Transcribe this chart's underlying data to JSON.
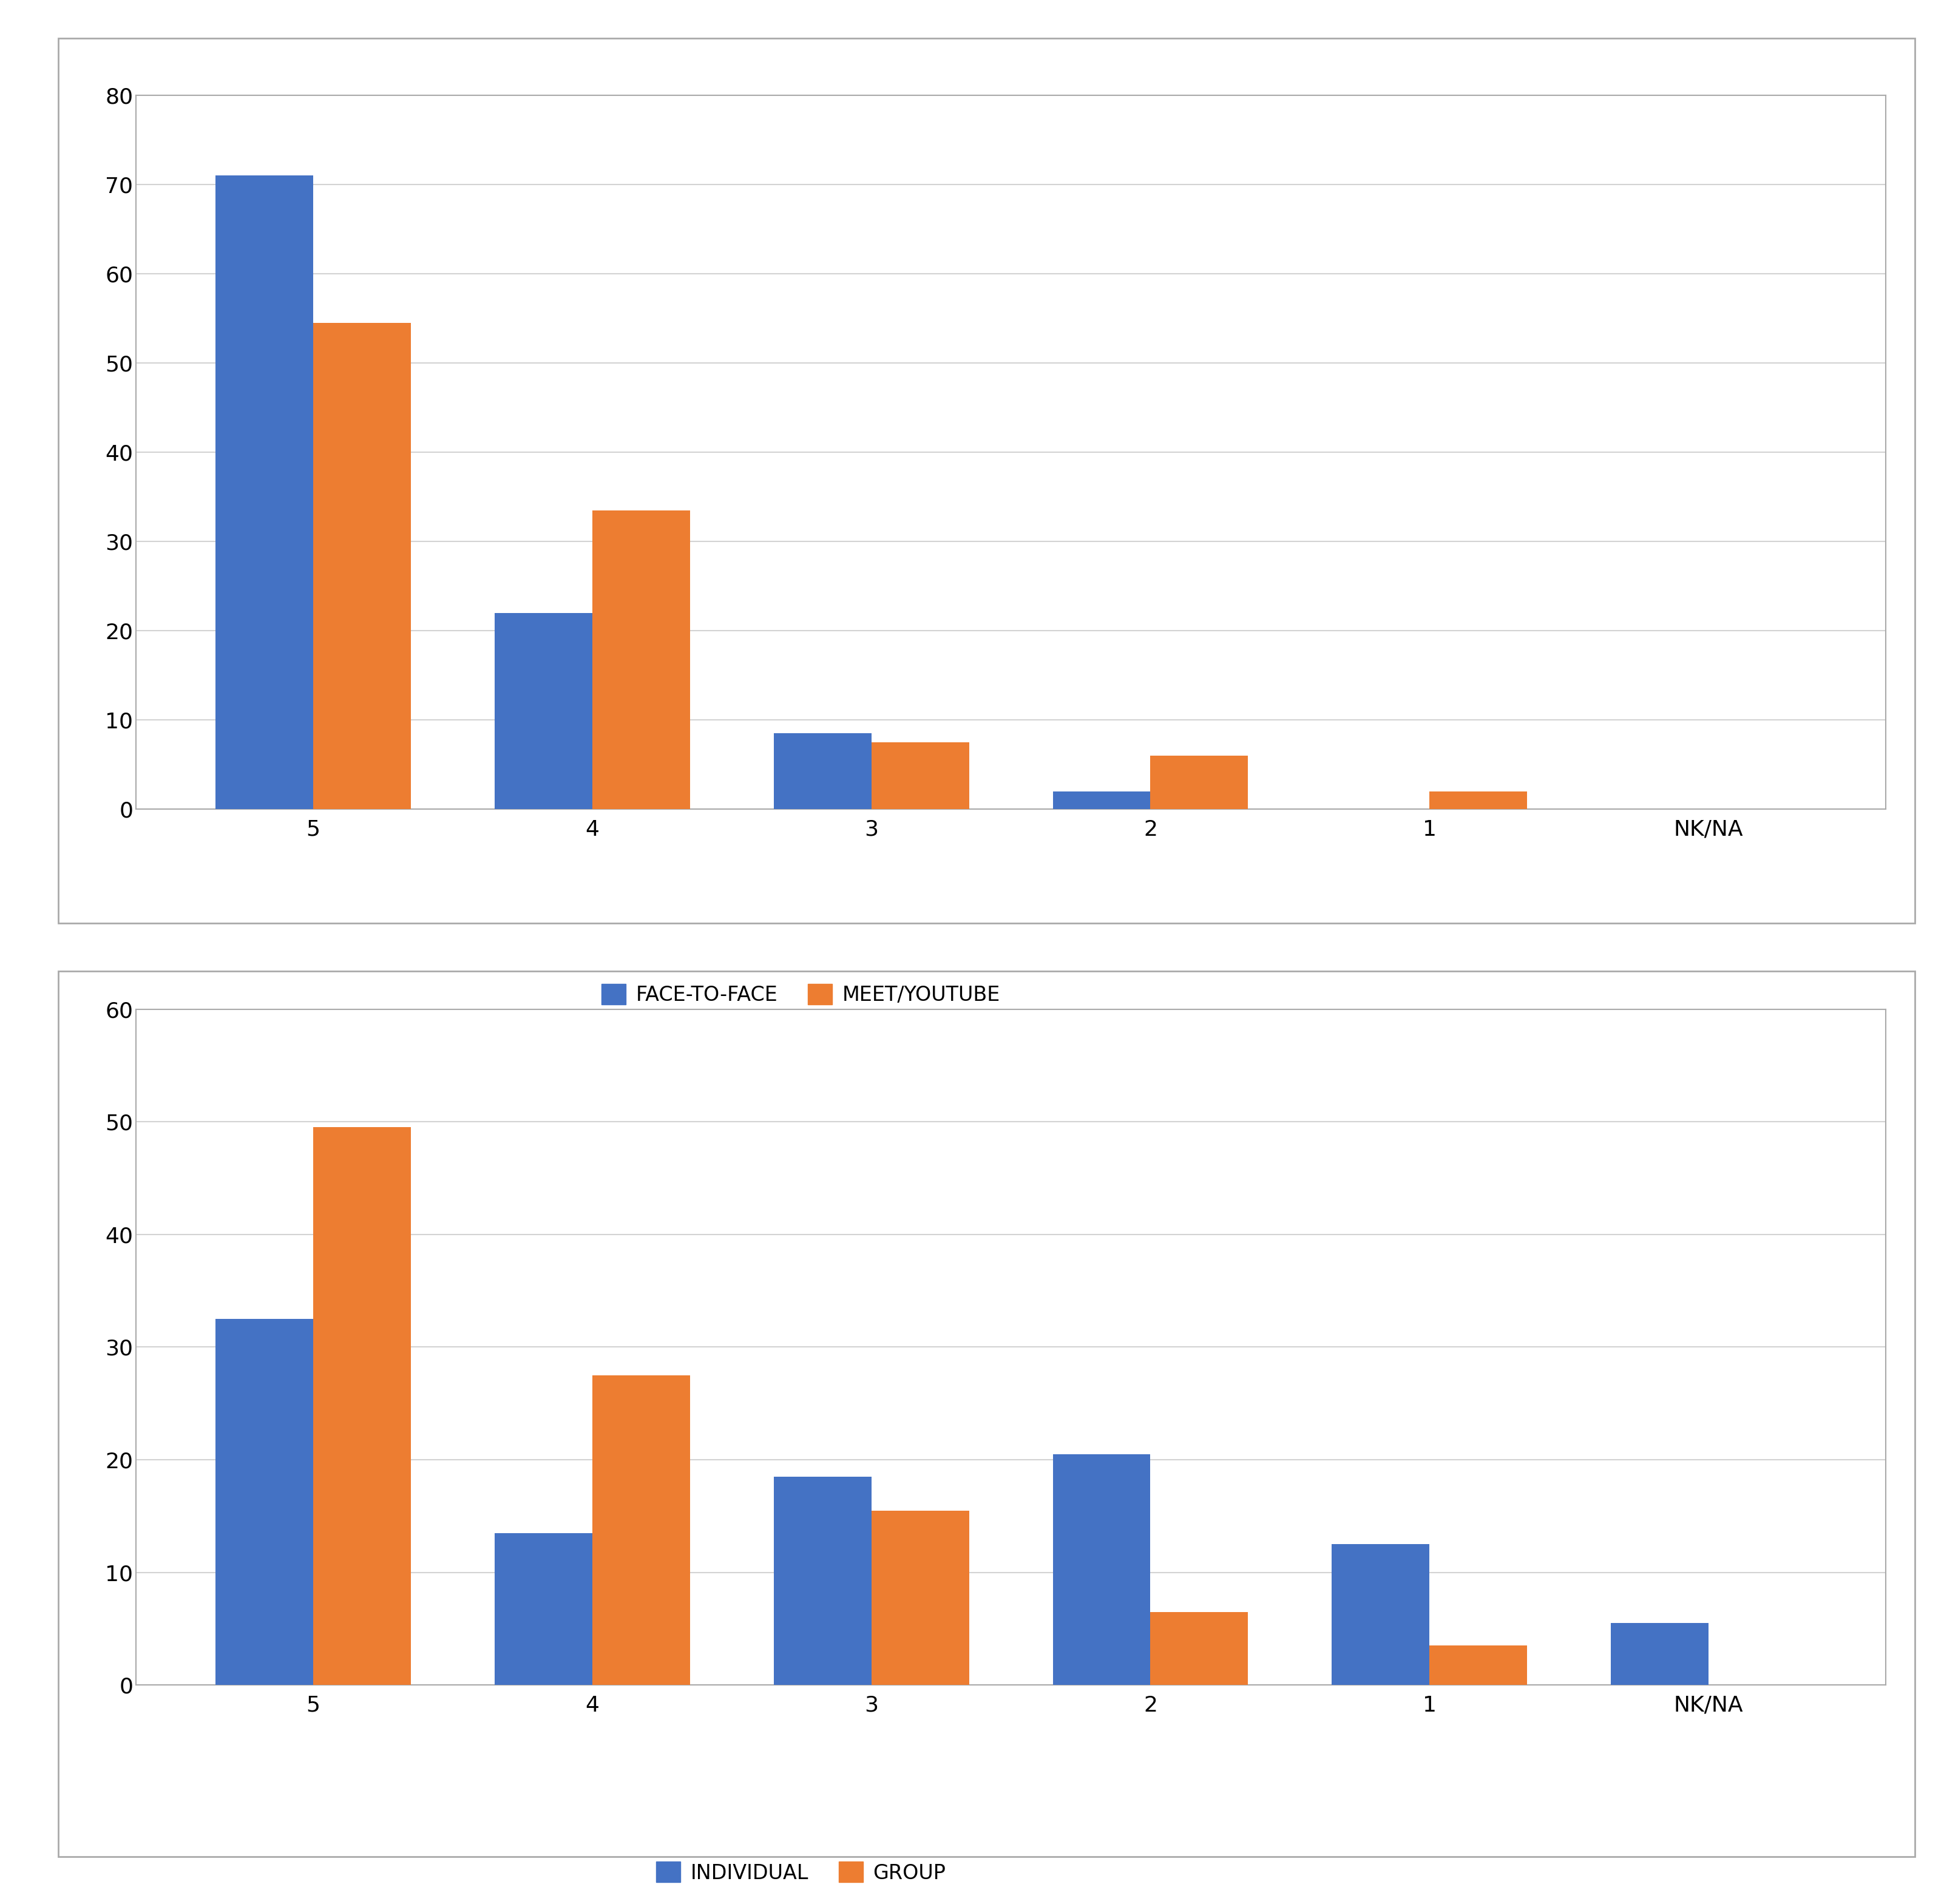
{
  "chart1": {
    "categories": [
      "5",
      "4",
      "3",
      "2",
      "1",
      "NK/NA"
    ],
    "face_to_face": [
      71,
      22,
      8.5,
      2,
      0,
      0
    ],
    "meet_youtube": [
      54.5,
      33.5,
      7.5,
      6,
      2,
      0
    ],
    "ylim": [
      0,
      80
    ],
    "yticks": [
      0,
      10,
      20,
      30,
      40,
      50,
      60,
      70,
      80
    ],
    "legend1": "FACE-TO-FACE",
    "legend2": "MEET/YOUTUBE",
    "color1": "#4472C4",
    "color2": "#ED7D31"
  },
  "chart2": {
    "categories": [
      "5",
      "4",
      "3",
      "2",
      "1",
      "NK/NA"
    ],
    "individual": [
      32.5,
      13.5,
      18.5,
      20.5,
      12.5,
      5.5
    ],
    "group": [
      49.5,
      27.5,
      15.5,
      6.5,
      3.5,
      0
    ],
    "ylim": [
      0,
      60
    ],
    "yticks": [
      0,
      10,
      20,
      30,
      40,
      50,
      60
    ],
    "legend1": "INDIVIDUAL",
    "legend2": "GROUP",
    "color1": "#4472C4",
    "color2": "#ED7D31"
  },
  "outer_bg": "#ffffff",
  "plot_bg": "#ffffff",
  "grid_color": "#d3d3d3",
  "bar_width": 0.35,
  "tick_fontsize": 26,
  "legend_fontsize": 24,
  "spine_color": "#aaaaaa"
}
